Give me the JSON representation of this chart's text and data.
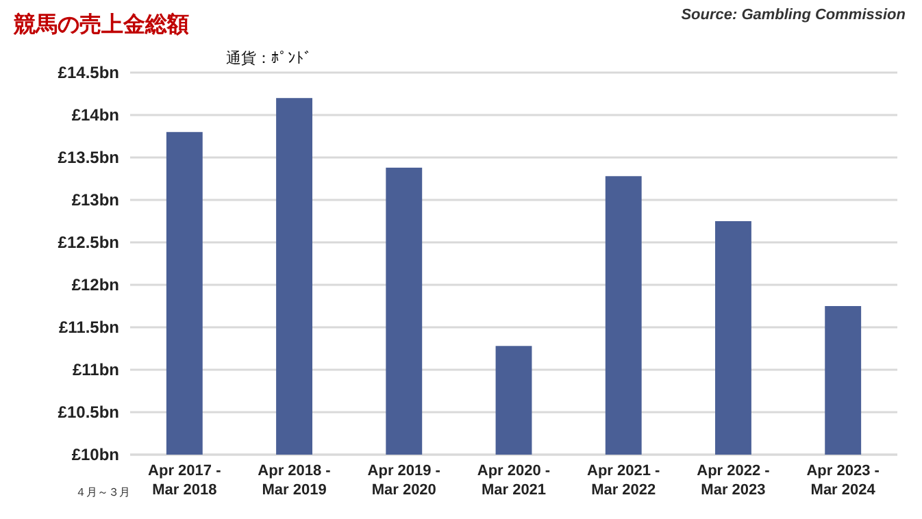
{
  "chart_data": {
    "type": "bar",
    "title": "競馬の売上金総額",
    "categories": [
      "Apr 2017 - Mar 2018",
      "Apr 2018 - Mar 2019",
      "Apr 2019 - Mar 2020",
      "Apr 2020 - Mar 2021",
      "Apr 2021 - Mar 2022",
      "Apr 2022 - Mar 2023",
      "Apr 2023 - Mar 2024"
    ],
    "values": [
      13.8,
      14.2,
      13.38,
      11.28,
      13.28,
      12.75,
      11.75
    ],
    "color": "#4a5f96",
    "ylim": [
      10,
      14.5
    ],
    "yticks": [
      {
        "value": 10,
        "label": "£10bn"
      },
      {
        "value": 10.5,
        "label": "£10.5bn"
      },
      {
        "value": 11,
        "label": "£11bn"
      },
      {
        "value": 11.5,
        "label": "£11.5bn"
      },
      {
        "value": 12,
        "label": "£12bn"
      },
      {
        "value": 12.5,
        "label": "£12.5bn"
      },
      {
        "value": 13,
        "label": "£13bn"
      },
      {
        "value": 13.5,
        "label": "£13.5bn"
      },
      {
        "value": 14,
        "label": "£14bn"
      },
      {
        "value": 14.5,
        "label": "£14.5bn"
      }
    ],
    "grid": "y",
    "annotations": [
      "Source: Gambling Commission",
      "通貨：ﾎﾟﾝﾄﾞ",
      "４月～３月"
    ]
  }
}
